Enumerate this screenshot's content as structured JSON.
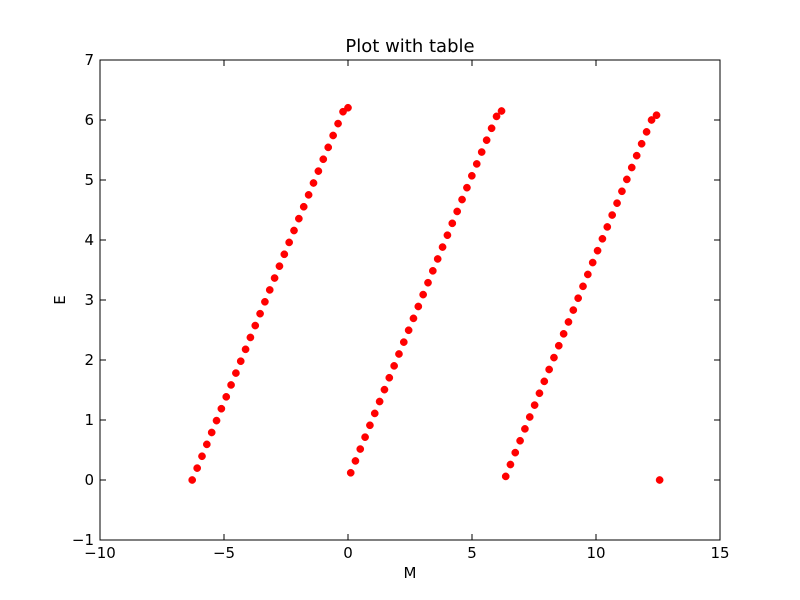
{
  "chart_data": {
    "type": "scatter",
    "title": "Plot with table",
    "xlabel": "M",
    "ylabel": "E",
    "xlim": [
      -10,
      15
    ],
    "ylim": [
      -1,
      7
    ],
    "xticks": [
      -10,
      -5,
      0,
      5,
      10,
      15
    ],
    "xtick_labels": [
      "−10",
      "−5",
      "0",
      "5",
      "10",
      "15"
    ],
    "yticks": [
      -1,
      0,
      1,
      2,
      3,
      4,
      5,
      6,
      7
    ],
    "ytick_labels": [
      "−1",
      "0",
      "1",
      "2",
      "3",
      "4",
      "5",
      "6",
      "7"
    ],
    "grid": false,
    "marker_color": "#ff0000",
    "series": [
      {
        "x": [
          -6.283,
          -6.082,
          -5.887,
          -5.692,
          -5.496,
          -5.301,
          -5.106,
          -4.91,
          -4.715,
          -4.52,
          -4.325,
          -4.13,
          -3.935,
          -3.74,
          -3.545,
          -3.35,
          -3.155,
          -2.96,
          -2.764,
          -2.568,
          -2.373,
          -2.177,
          -1.981,
          -1.785,
          -1.588,
          -1.391,
          -1.194,
          -0.997,
          -0.798,
          -0.6,
          -0.401,
          -0.201,
          0.0
        ],
        "y": [
          0.0,
          0.198,
          0.396,
          0.594,
          0.792,
          0.99,
          1.188,
          1.386,
          1.584,
          1.782,
          1.98,
          2.178,
          2.376,
          2.574,
          2.772,
          2.97,
          3.168,
          3.366,
          3.564,
          3.762,
          3.96,
          4.158,
          4.356,
          4.554,
          4.752,
          4.95,
          5.148,
          5.346,
          5.544,
          5.742,
          5.94,
          6.138,
          6.204
        ]
      },
      {
        "x": [
          0.11,
          0.3,
          0.494,
          0.689,
          0.884,
          1.079,
          1.275,
          1.47,
          1.665,
          1.86,
          2.055,
          2.25,
          2.445,
          2.64,
          2.835,
          3.03,
          3.226,
          3.421,
          3.617,
          3.813,
          4.009,
          4.205,
          4.402,
          4.599,
          4.796,
          4.994,
          5.192,
          5.391,
          5.59,
          5.79,
          5.99,
          6.191
        ],
        "y": [
          0.12,
          0.318,
          0.516,
          0.714,
          0.912,
          1.11,
          1.308,
          1.506,
          1.704,
          1.902,
          2.1,
          2.298,
          2.496,
          2.694,
          2.892,
          3.09,
          3.288,
          3.486,
          3.684,
          3.882,
          4.08,
          4.278,
          4.476,
          4.674,
          4.872,
          5.07,
          5.268,
          5.466,
          5.664,
          5.862,
          6.06,
          6.15
        ]
      },
      {
        "x": [
          6.36,
          6.55,
          6.744,
          6.939,
          7.134,
          7.329,
          7.525,
          7.72,
          7.915,
          8.11,
          8.305,
          8.5,
          8.695,
          8.89,
          9.085,
          9.28,
          9.476,
          9.671,
          9.867,
          10.063,
          10.259,
          10.455,
          10.652,
          10.849,
          11.046,
          11.244,
          11.442,
          11.641,
          11.84,
          12.04,
          12.24,
          12.441,
          12.566
        ],
        "y": [
          0.06,
          0.258,
          0.456,
          0.654,
          0.852,
          1.05,
          1.248,
          1.446,
          1.644,
          1.842,
          2.04,
          2.238,
          2.436,
          2.634,
          2.832,
          3.03,
          3.228,
          3.426,
          3.624,
          3.822,
          4.02,
          4.218,
          4.416,
          4.614,
          4.812,
          5.01,
          5.208,
          5.406,
          5.604,
          5.802,
          6.0,
          6.08,
          0.0
        ]
      }
    ]
  }
}
